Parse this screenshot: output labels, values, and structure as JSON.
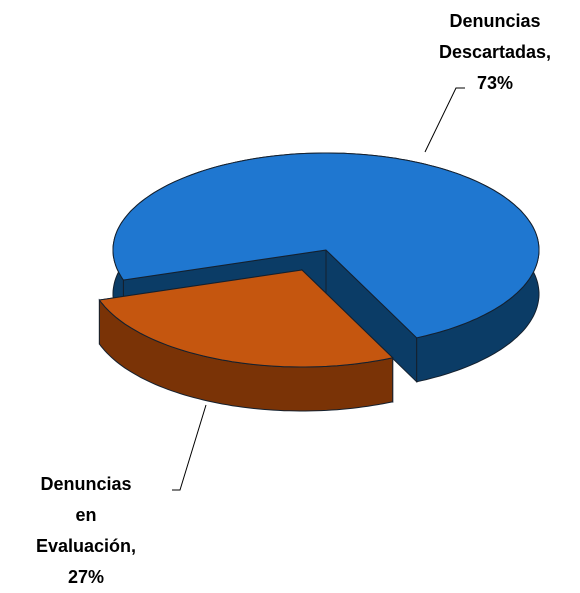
{
  "chart_data": {
    "type": "pie",
    "categories": [
      "Denuncias Descartadas,",
      "Denuncias en Evaluación,"
    ],
    "values": [
      73,
      27
    ],
    "value_labels": [
      "73%",
      "27%"
    ],
    "colors": [
      "#1f77d0",
      "#c5560f"
    ],
    "side_colors": [
      "#0b3c66",
      "#7a3306"
    ]
  }
}
